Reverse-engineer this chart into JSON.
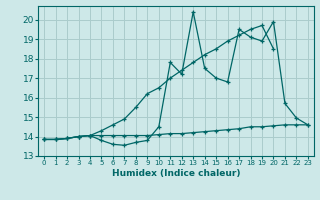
{
  "xlabel": "Humidex (Indice chaleur)",
  "bg_color": "#cde8e8",
  "grid_color": "#aacccc",
  "line_color": "#006666",
  "x": [
    0,
    1,
    2,
    3,
    4,
    5,
    6,
    7,
    8,
    9,
    10,
    11,
    12,
    13,
    14,
    15,
    16,
    17,
    18,
    19,
    20,
    21,
    22,
    23
  ],
  "line_flat": [
    13.85,
    13.85,
    13.9,
    14.0,
    14.05,
    14.05,
    14.05,
    14.05,
    14.05,
    14.05,
    14.1,
    14.15,
    14.15,
    14.2,
    14.25,
    14.3,
    14.35,
    14.4,
    14.5,
    14.5,
    14.55,
    14.6,
    14.6,
    14.6
  ],
  "line_volatile": [
    13.85,
    13.85,
    13.9,
    14.0,
    14.05,
    13.8,
    13.6,
    13.55,
    13.7,
    13.8,
    14.5,
    17.8,
    17.2,
    20.4,
    17.5,
    17.0,
    16.8,
    19.5,
    19.1,
    18.9,
    19.9,
    15.7,
    14.95,
    14.6
  ],
  "line_diag": [
    13.85,
    13.85,
    13.9,
    14.0,
    14.05,
    14.3,
    14.6,
    14.9,
    15.5,
    16.2,
    16.5,
    17.0,
    17.4,
    17.8,
    18.2,
    18.5,
    18.9,
    19.2,
    19.5,
    19.7,
    18.5,
    null,
    null,
    null
  ],
  "ylim": [
    13.0,
    20.7
  ],
  "xlim": [
    -0.5,
    23.5
  ],
  "yticks": [
    13,
    14,
    15,
    16,
    17,
    18,
    19,
    20
  ],
  "xticks": [
    0,
    1,
    2,
    3,
    4,
    5,
    6,
    7,
    8,
    9,
    10,
    11,
    12,
    13,
    14,
    15,
    16,
    17,
    18,
    19,
    20,
    21,
    22,
    23
  ]
}
